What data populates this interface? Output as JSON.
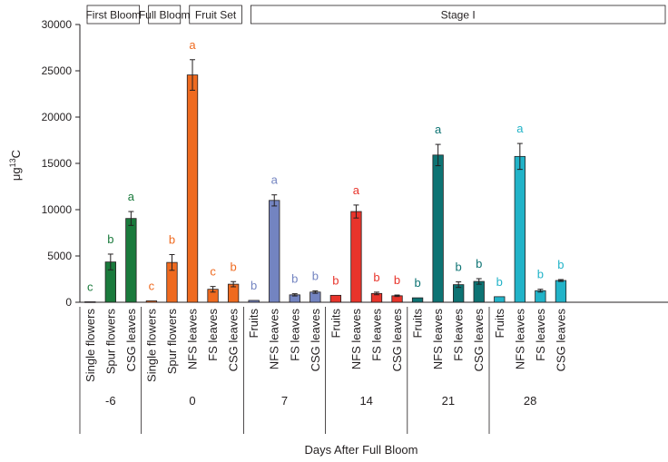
{
  "chart_data": {
    "type": "bar",
    "ylabel_main": "μg",
    "ylabel_sup": "13",
    "ylabel_tail": "C",
    "xlabel": "Days After Full Bloom",
    "ylim": [
      0,
      30000
    ],
    "yticks": [
      0,
      5000,
      10000,
      15000,
      20000,
      25000,
      30000
    ],
    "stages": [
      {
        "label": "First Bloom",
        "span": [
          0,
          2
        ]
      },
      {
        "label": "Full Bloom",
        "span": [
          3,
          4
        ]
      },
      {
        "label": "Fruit Set",
        "span": [
          5,
          7
        ]
      },
      {
        "label": "Stage I",
        "span": [
          8,
          28
        ]
      }
    ],
    "groups": [
      {
        "label": "-6",
        "color": "#1a7a3c",
        "bars": [
          {
            "category": "Single flowers",
            "value": 50,
            "error": 0,
            "letter": "c"
          },
          {
            "category": "Spur flowers",
            "value": 4350,
            "error": 850,
            "letter": "b"
          },
          {
            "category": "CSG leaves",
            "value": 9050,
            "error": 750,
            "letter": "a"
          }
        ]
      },
      {
        "label": "0",
        "color": "#ef6a1f",
        "bars": [
          {
            "category": "Single flowers",
            "value": 150,
            "error": 0,
            "letter": "c"
          },
          {
            "category": "Spur flowers",
            "value": 4300,
            "error": 850,
            "letter": "b"
          },
          {
            "category": "NFS leaves",
            "value": 24550,
            "error": 1650,
            "letter": "a"
          },
          {
            "category": "FS leaves",
            "value": 1400,
            "error": 300,
            "letter": "c"
          },
          {
            "category": "CSG leaves",
            "value": 1950,
            "error": 280,
            "letter": "b"
          }
        ]
      },
      {
        "label": "7",
        "color": "#7384c1",
        "bars": [
          {
            "category": "Fruits",
            "value": 200,
            "error": 0,
            "letter": "b"
          },
          {
            "category": "NFS leaves",
            "value": 11000,
            "error": 600,
            "letter": "a"
          },
          {
            "category": "FS leaves",
            "value": 800,
            "error": 120,
            "letter": "b"
          },
          {
            "category": "CSG leaves",
            "value": 1100,
            "error": 130,
            "letter": "b"
          }
        ]
      },
      {
        "label": "14",
        "color": "#e8342b",
        "bars": [
          {
            "category": "Fruits",
            "value": 750,
            "error": 0,
            "letter": "b"
          },
          {
            "category": "NFS leaves",
            "value": 9800,
            "error": 700,
            "letter": "a"
          },
          {
            "category": "FS leaves",
            "value": 950,
            "error": 140,
            "letter": "b"
          },
          {
            "category": "CSG leaves",
            "value": 700,
            "error": 80,
            "letter": "b"
          }
        ]
      },
      {
        "label": "21",
        "color": "#0d7373",
        "bars": [
          {
            "category": "Fruits",
            "value": 480,
            "error": 0,
            "letter": "b"
          },
          {
            "category": "NFS leaves",
            "value": 15900,
            "error": 1150,
            "letter": "a"
          },
          {
            "category": "FS leaves",
            "value": 1900,
            "error": 300,
            "letter": "b"
          },
          {
            "category": "CSG leaves",
            "value": 2250,
            "error": 300,
            "letter": "b"
          }
        ]
      },
      {
        "label": "28",
        "color": "#21b3c8",
        "bars": [
          {
            "category": "Fruits",
            "value": 600,
            "error": 0,
            "letter": "b"
          },
          {
            "category": "NFS leaves",
            "value": 15750,
            "error": 1400,
            "letter": "a"
          },
          {
            "category": "FS leaves",
            "value": 1250,
            "error": 150,
            "letter": "b"
          },
          {
            "category": "CSG leaves",
            "value": 2350,
            "error": 100,
            "letter": "b"
          }
        ]
      }
    ]
  }
}
